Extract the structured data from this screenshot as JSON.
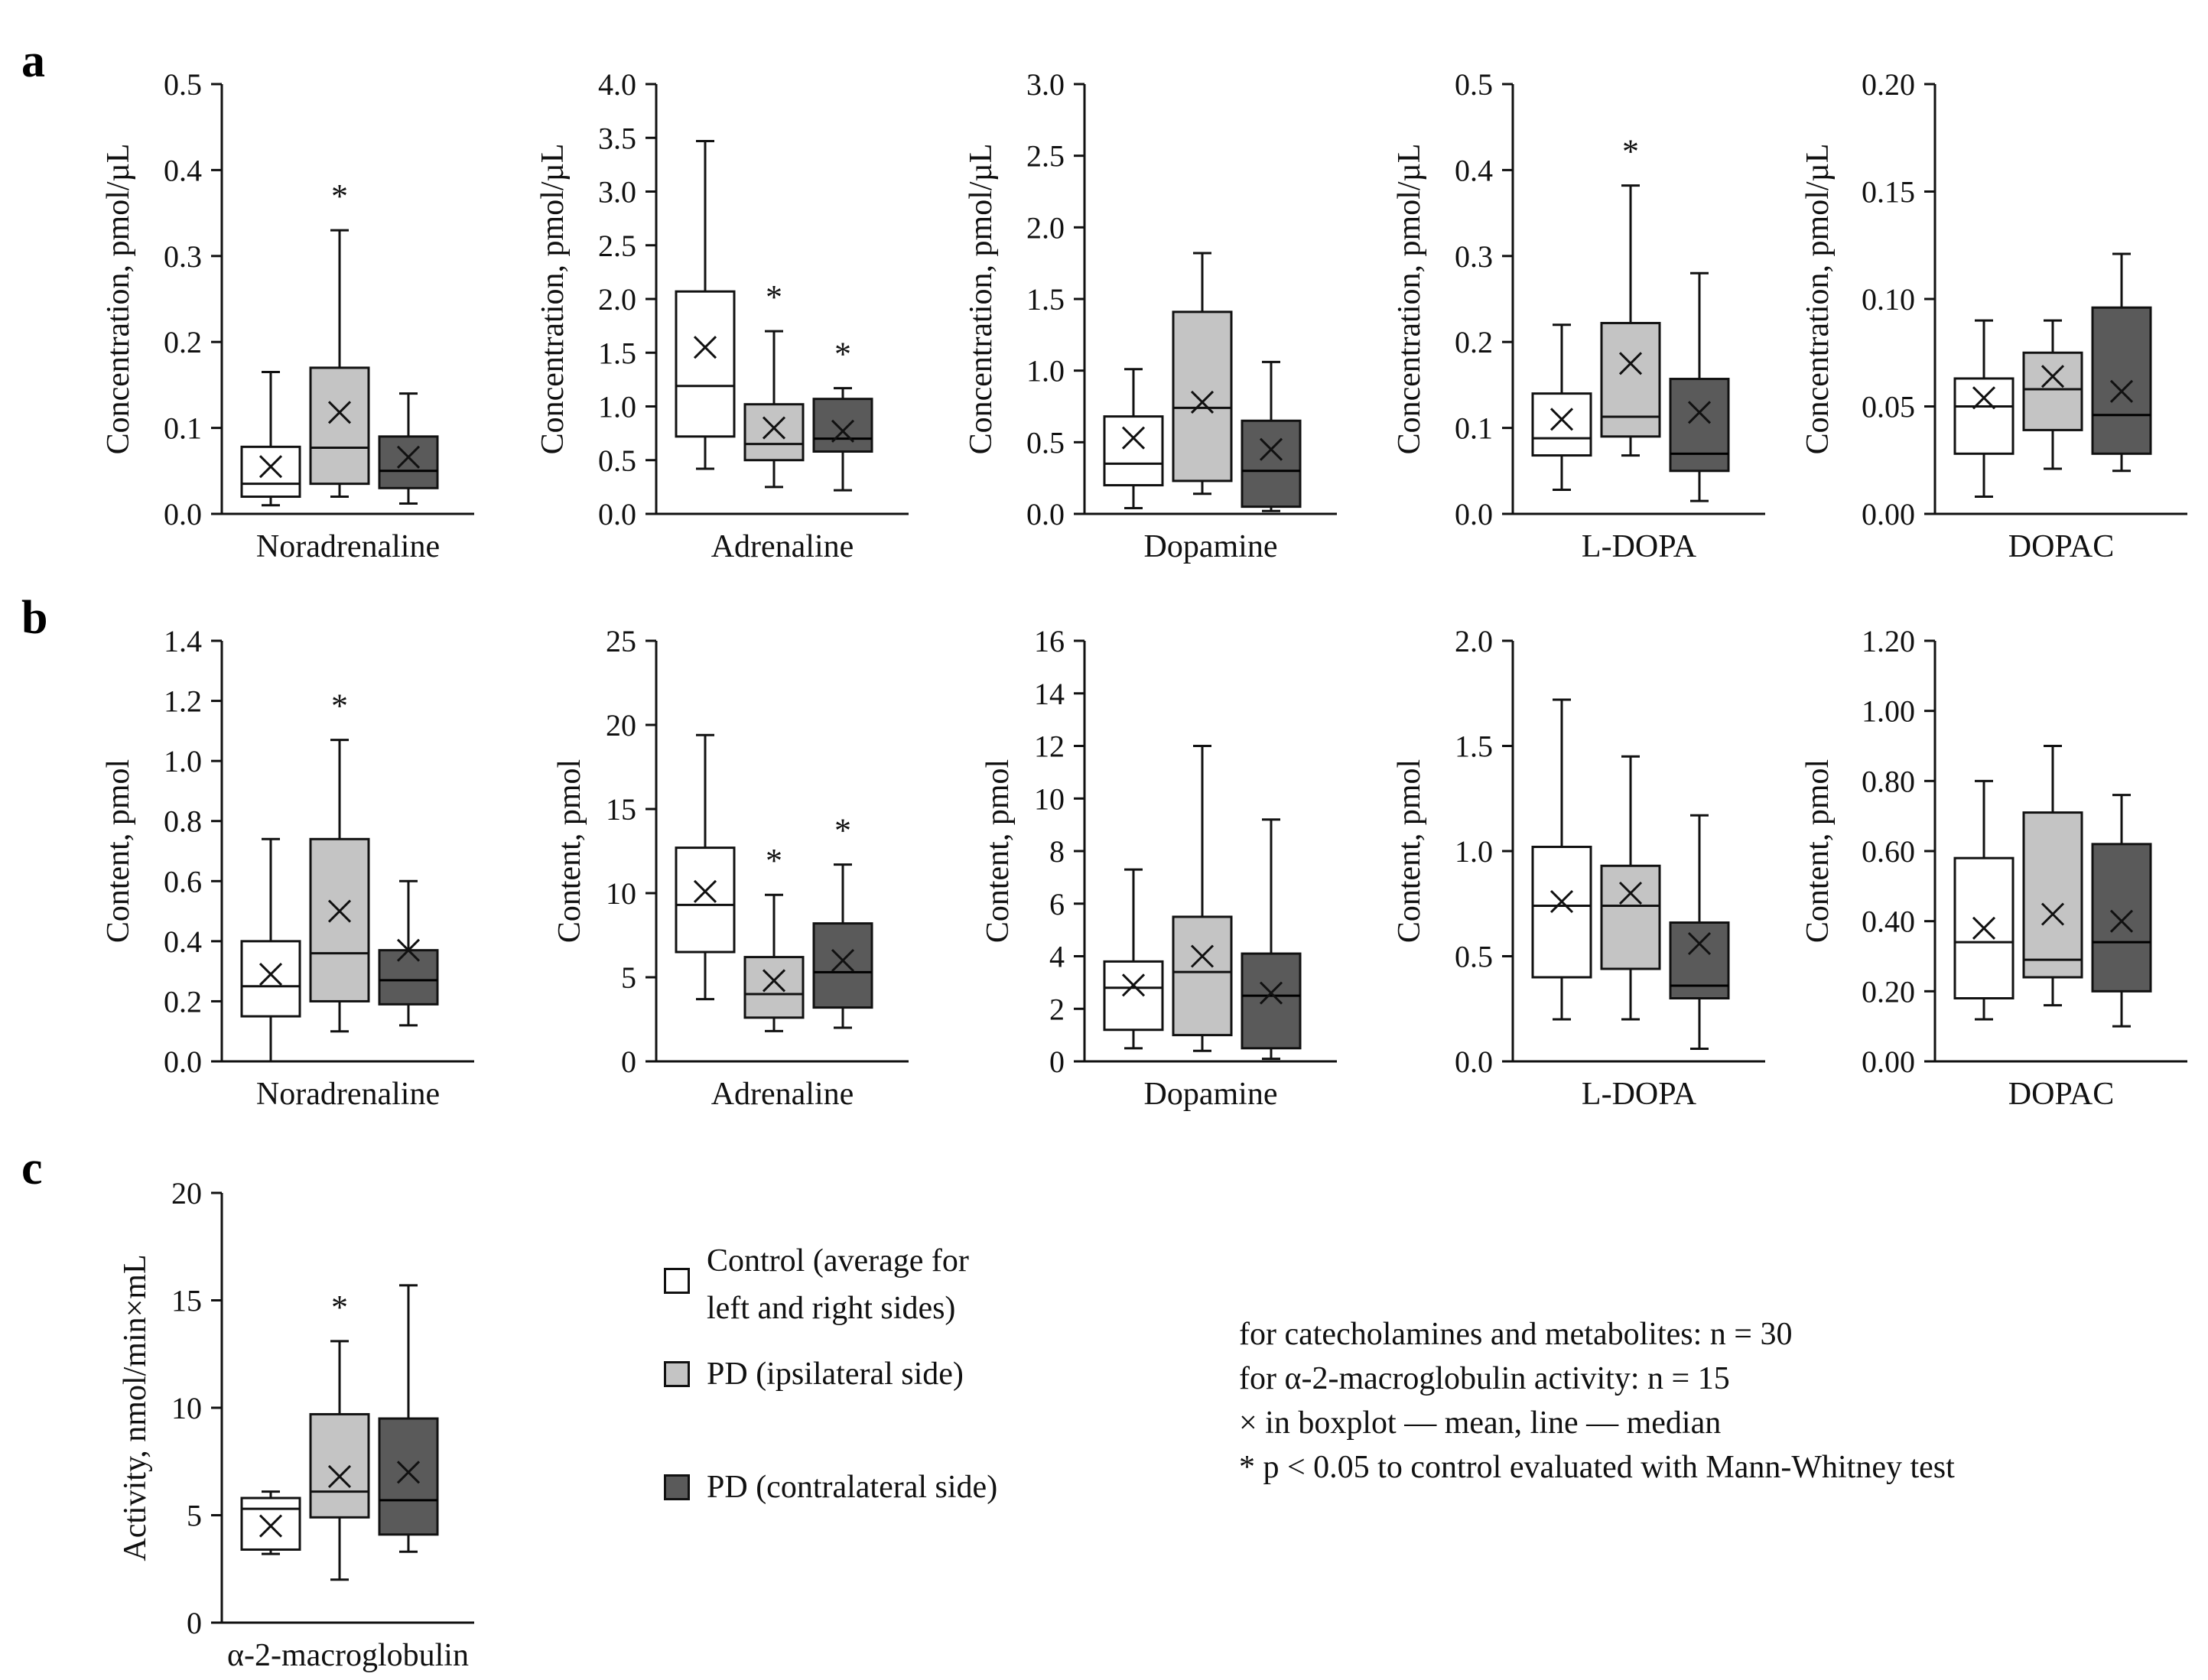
{
  "panel_letters": [
    "a",
    "b",
    "c"
  ],
  "colors": {
    "control": "#ffffff",
    "pd_ipsi": "#c4c4c4",
    "pd_contra": "#5a5a5a",
    "stroke": "#111111"
  },
  "legend": {
    "control": "Control (average for\nleft and right sides)",
    "ipsi": "PD (ipsilateral side)",
    "contra": "PD (contralateral side)"
  },
  "notes": [
    "for catecholamines and metabolites: n = 30",
    "for α-2-macroglobulin activity: n = 15",
    "× in boxplot — mean, line — median",
    "* p < 0.05 to control evaluated with Mann-Whitney test"
  ],
  "chart_data": [
    {
      "type": "box",
      "panel": "a",
      "title": "Noradrenaline",
      "ylabel": "Concentration, pmol/µL",
      "ylim": [
        0,
        0.5
      ],
      "yticks": [
        "0.0",
        "0.1",
        "0.2",
        "0.3",
        "0.4",
        "0.5"
      ],
      "series": [
        {
          "name": "Control",
          "min": 0.01,
          "q1": 0.02,
          "median": 0.035,
          "q3": 0.078,
          "max": 0.165,
          "mean": 0.055,
          "sig": false
        },
        {
          "name": "PD ipsilateral",
          "min": 0.02,
          "q1": 0.035,
          "median": 0.077,
          "q3": 0.17,
          "max": 0.33,
          "mean": 0.118,
          "sig": true
        },
        {
          "name": "PD contralateral",
          "min": 0.012,
          "q1": 0.03,
          "median": 0.05,
          "q3": 0.09,
          "max": 0.14,
          "mean": 0.066,
          "sig": false
        }
      ]
    },
    {
      "type": "box",
      "panel": "a",
      "title": "Adrenaline",
      "ylabel": "Concentration, pmol/µL",
      "ylim": [
        0,
        4
      ],
      "yticks": [
        "0.0",
        "0.5",
        "1.0",
        "1.5",
        "2.0",
        "2.5",
        "3.0",
        "3.5",
        "4.0"
      ],
      "series": [
        {
          "name": "Control",
          "min": 0.42,
          "q1": 0.72,
          "median": 1.19,
          "q3": 2.07,
          "max": 3.47,
          "mean": 1.55,
          "sig": false
        },
        {
          "name": "PD ipsilateral",
          "min": 0.25,
          "q1": 0.5,
          "median": 0.65,
          "q3": 1.02,
          "max": 1.7,
          "mean": 0.8,
          "sig": true
        },
        {
          "name": "PD contralateral",
          "min": 0.22,
          "q1": 0.58,
          "median": 0.7,
          "q3": 1.07,
          "max": 1.17,
          "mean": 0.77,
          "sig": true
        }
      ]
    },
    {
      "type": "box",
      "panel": "a",
      "title": "Dopamine",
      "ylabel": "Concentration, pmol/µL",
      "ylim": [
        0,
        3
      ],
      "yticks": [
        "0.0",
        "0.5",
        "1.0",
        "1.5",
        "2.0",
        "2.5",
        "3.0"
      ],
      "series": [
        {
          "name": "Control",
          "min": 0.04,
          "q1": 0.2,
          "median": 0.35,
          "q3": 0.68,
          "max": 1.01,
          "mean": 0.53,
          "sig": false
        },
        {
          "name": "PD ipsilateral",
          "min": 0.14,
          "q1": 0.23,
          "median": 0.74,
          "q3": 1.41,
          "max": 1.82,
          "mean": 0.78,
          "sig": false
        },
        {
          "name": "PD contralateral",
          "min": 0.02,
          "q1": 0.05,
          "median": 0.3,
          "q3": 0.65,
          "max": 1.06,
          "mean": 0.45,
          "sig": false
        }
      ]
    },
    {
      "type": "box",
      "panel": "a",
      "title": "L-DOPA",
      "ylabel": "Concentration, pmol/µL",
      "ylim": [
        0,
        0.5
      ],
      "yticks": [
        "0.0",
        "0.1",
        "0.2",
        "0.3",
        "0.4",
        "0.5"
      ],
      "series": [
        {
          "name": "Control",
          "min": 0.028,
          "q1": 0.068,
          "median": 0.088,
          "q3": 0.14,
          "max": 0.22,
          "mean": 0.11,
          "sig": false
        },
        {
          "name": "PD ipsilateral",
          "min": 0.068,
          "q1": 0.09,
          "median": 0.113,
          "q3": 0.222,
          "max": 0.382,
          "mean": 0.175,
          "sig": true
        },
        {
          "name": "PD contralateral",
          "min": 0.015,
          "q1": 0.05,
          "median": 0.07,
          "q3": 0.157,
          "max": 0.28,
          "mean": 0.118,
          "sig": false
        }
      ]
    },
    {
      "type": "box",
      "panel": "a",
      "title": "DOPAC",
      "ylabel": "Concentration, pmol/µL",
      "ylim": [
        0,
        0.2
      ],
      "yticks": [
        "0.00",
        "0.05",
        "0.10",
        "0.15",
        "0.20"
      ],
      "series": [
        {
          "name": "Control",
          "min": 0.008,
          "q1": 0.028,
          "median": 0.05,
          "q3": 0.063,
          "max": 0.09,
          "mean": 0.054,
          "sig": false
        },
        {
          "name": "PD ipsilateral",
          "min": 0.021,
          "q1": 0.039,
          "median": 0.058,
          "q3": 0.075,
          "max": 0.09,
          "mean": 0.064,
          "sig": false
        },
        {
          "name": "PD contralateral",
          "min": 0.02,
          "q1": 0.028,
          "median": 0.046,
          "q3": 0.096,
          "max": 0.121,
          "mean": 0.057,
          "sig": false
        }
      ]
    },
    {
      "type": "box",
      "panel": "b",
      "title": "Noradrenaline",
      "ylabel": "Content, pmol",
      "ylim": [
        0,
        1.4
      ],
      "yticks": [
        "0.0",
        "0.2",
        "0.4",
        "0.6",
        "0.8",
        "1.0",
        "1.2",
        "1.4"
      ],
      "series": [
        {
          "name": "Control",
          "min": 0.0,
          "q1": 0.15,
          "median": 0.25,
          "q3": 0.4,
          "max": 0.74,
          "mean": 0.29,
          "sig": false
        },
        {
          "name": "PD ipsilateral",
          "min": 0.1,
          "q1": 0.2,
          "median": 0.36,
          "q3": 0.74,
          "max": 1.07,
          "mean": 0.5,
          "sig": true
        },
        {
          "name": "PD contralateral",
          "min": 0.12,
          "q1": 0.19,
          "median": 0.27,
          "q3": 0.37,
          "max": 0.6,
          "mean": 0.37,
          "sig": false
        }
      ]
    },
    {
      "type": "box",
      "panel": "b",
      "title": "Adrenaline",
      "ylabel": "Content, pmol",
      "ylim": [
        0,
        25
      ],
      "yticks": [
        "0",
        "5",
        "10",
        "15",
        "20",
        "25"
      ],
      "series": [
        {
          "name": "Control",
          "min": 3.7,
          "q1": 6.5,
          "median": 9.3,
          "q3": 12.7,
          "max": 19.4,
          "mean": 10.1,
          "sig": false
        },
        {
          "name": "PD ipsilateral",
          "min": 1.8,
          "q1": 2.6,
          "median": 4.0,
          "q3": 6.2,
          "max": 9.9,
          "mean": 4.8,
          "sig": true
        },
        {
          "name": "PD contralateral",
          "min": 2.0,
          "q1": 3.2,
          "median": 5.3,
          "q3": 8.2,
          "max": 11.7,
          "mean": 6.0,
          "sig": true
        }
      ]
    },
    {
      "type": "box",
      "panel": "b",
      "title": "Dopamine",
      "ylabel": "Content, pmol",
      "ylim": [
        0,
        16
      ],
      "yticks": [
        "0",
        "2",
        "4",
        "6",
        "8",
        "10",
        "12",
        "14",
        "16"
      ],
      "series": [
        {
          "name": "Control",
          "min": 0.5,
          "q1": 1.2,
          "median": 2.8,
          "q3": 3.8,
          "max": 7.3,
          "mean": 2.9,
          "sig": false
        },
        {
          "name": "PD ipsilateral",
          "min": 0.4,
          "q1": 1.0,
          "median": 3.4,
          "q3": 5.5,
          "max": 12.0,
          "mean": 4.0,
          "sig": false
        },
        {
          "name": "PD contralateral",
          "min": 0.1,
          "q1": 0.5,
          "median": 2.5,
          "q3": 4.1,
          "max": 9.2,
          "mean": 2.6,
          "sig": false
        }
      ]
    },
    {
      "type": "box",
      "panel": "b",
      "title": "L-DOPA",
      "ylabel": "Content, pmol",
      "ylim": [
        0,
        2
      ],
      "yticks": [
        "0.0",
        "0.5",
        "1.0",
        "1.5",
        "2.0"
      ],
      "series": [
        {
          "name": "Control",
          "min": 0.2,
          "q1": 0.4,
          "median": 0.74,
          "q3": 1.02,
          "max": 1.72,
          "mean": 0.76,
          "sig": false
        },
        {
          "name": "PD ipsilateral",
          "min": 0.2,
          "q1": 0.44,
          "median": 0.74,
          "q3": 0.93,
          "max": 1.45,
          "mean": 0.8,
          "sig": false
        },
        {
          "name": "PD contralateral",
          "min": 0.06,
          "q1": 0.3,
          "median": 0.36,
          "q3": 0.66,
          "max": 1.17,
          "mean": 0.56,
          "sig": false
        }
      ]
    },
    {
      "type": "box",
      "panel": "b",
      "title": "DOPAC",
      "ylabel": "Content, pmol",
      "ylim": [
        0,
        1.2
      ],
      "yticks": [
        "0.00",
        "0.20",
        "0.40",
        "0.60",
        "0.80",
        "1.00",
        "1.20"
      ],
      "series": [
        {
          "name": "Control",
          "min": 0.12,
          "q1": 0.18,
          "median": 0.34,
          "q3": 0.58,
          "max": 0.8,
          "mean": 0.38,
          "sig": false
        },
        {
          "name": "PD ipsilateral",
          "min": 0.16,
          "q1": 0.24,
          "median": 0.29,
          "q3": 0.71,
          "max": 0.9,
          "mean": 0.42,
          "sig": false
        },
        {
          "name": "PD contralateral",
          "min": 0.1,
          "q1": 0.2,
          "median": 0.34,
          "q3": 0.62,
          "max": 0.76,
          "mean": 0.4,
          "sig": false
        }
      ]
    },
    {
      "type": "box",
      "panel": "c",
      "title": "α-2-macroglobulin",
      "ylabel": "Activity, nmol/min×mL",
      "ylim": [
        0,
        20
      ],
      "yticks": [
        "0",
        "5",
        "10",
        "15",
        "20"
      ],
      "series": [
        {
          "name": "Control",
          "min": 3.2,
          "q1": 3.4,
          "median": 5.3,
          "q3": 5.8,
          "max": 6.1,
          "mean": 4.5,
          "sig": false
        },
        {
          "name": "PD ipsilateral",
          "min": 2.0,
          "q1": 4.9,
          "median": 6.1,
          "q3": 9.7,
          "max": 13.1,
          "mean": 6.8,
          "sig": true
        },
        {
          "name": "PD contralateral",
          "min": 3.3,
          "q1": 4.1,
          "median": 5.7,
          "q3": 9.5,
          "max": 15.7,
          "mean": 7.0,
          "sig": false
        }
      ]
    }
  ]
}
